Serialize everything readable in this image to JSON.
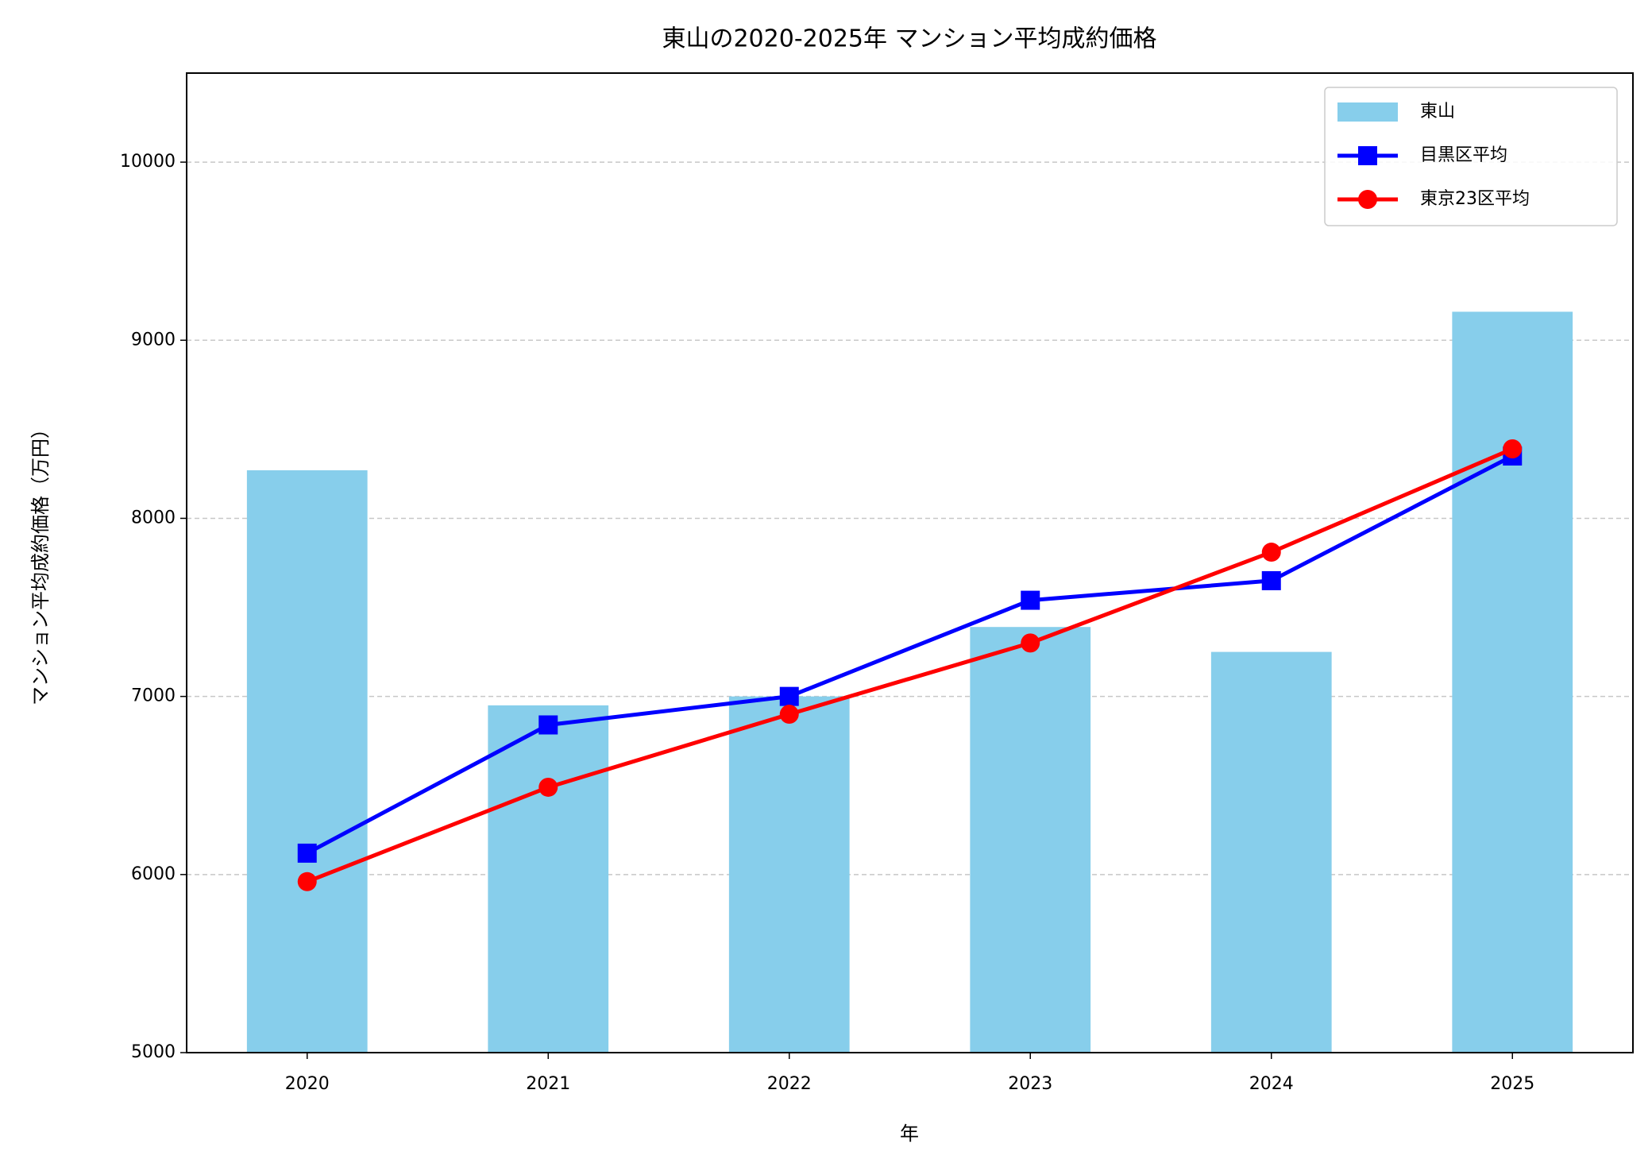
{
  "chart_data": {
    "type": "bar",
    "title": "東山の2020-2025年 マンション平均成約価格",
    "xlabel": "年",
    "ylabel": "マンション平均成約価格（万円）",
    "categories": [
      "2020",
      "2021",
      "2022",
      "2023",
      "2024",
      "2025"
    ],
    "series": [
      {
        "name": "東山",
        "type": "bar",
        "color": "#87ceeb",
        "values": [
          8270,
          6950,
          7000,
          7390,
          7250,
          9160
        ]
      },
      {
        "name": "目黒区平均",
        "type": "line",
        "marker": "square",
        "color": "#0000ff",
        "values": [
          6120,
          6840,
          7000,
          7540,
          7650,
          8350
        ]
      },
      {
        "name": "東京23区平均",
        "type": "line",
        "marker": "circle",
        "color": "#ff0000",
        "values": [
          5960,
          6490,
          6900,
          7300,
          7810,
          8390
        ]
      }
    ],
    "ylim": [
      5000,
      10500
    ],
    "yticks": [
      5000,
      6000,
      7000,
      8000,
      9000,
      10000
    ],
    "grid": true,
    "legend": "upper right"
  }
}
